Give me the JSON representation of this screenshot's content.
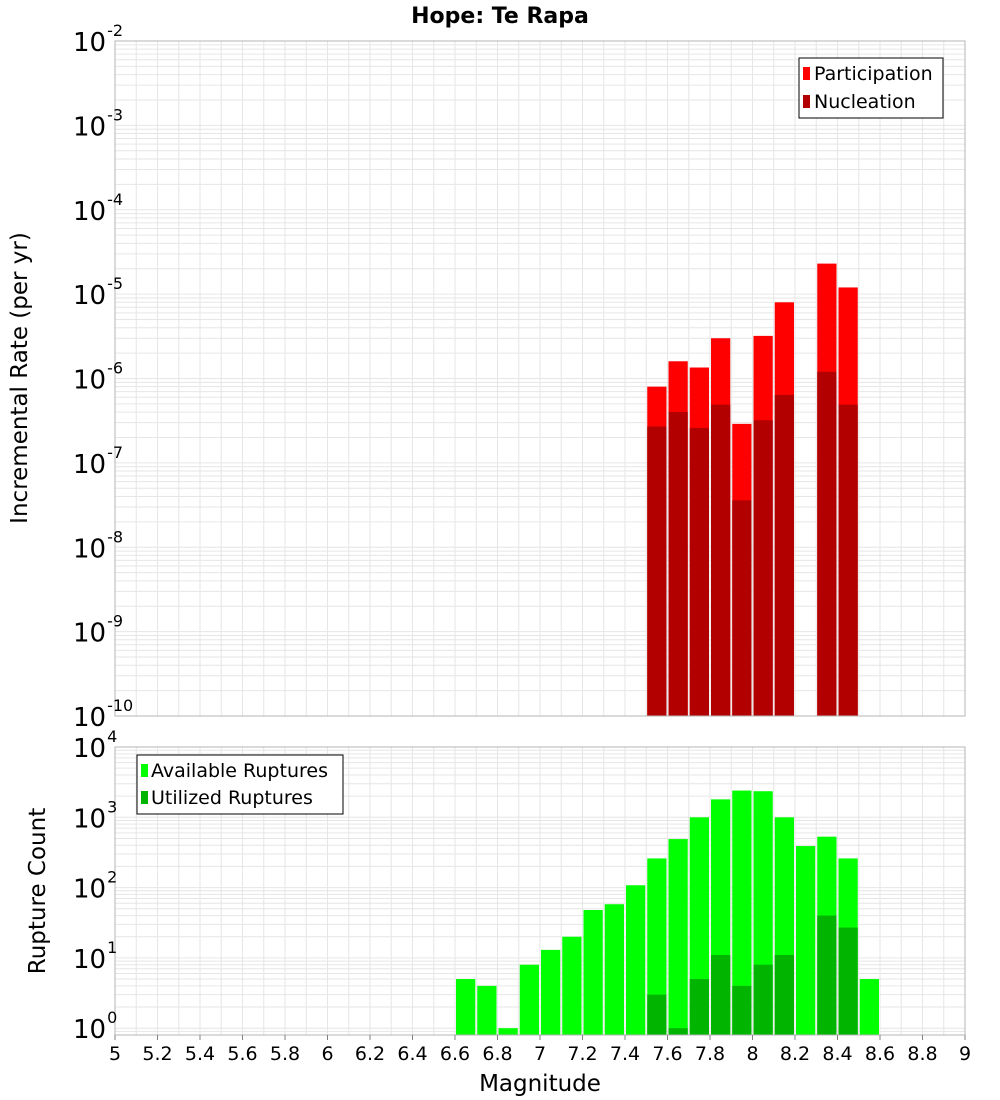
{
  "chart_data": [
    {
      "type": "bar",
      "title": "Hope: Te Rapa",
      "ylabel": "Incremental Rate (per yr)",
      "xlabel": "",
      "x_scale": "linear",
      "y_scale": "log",
      "xlim": [
        5,
        9
      ],
      "ylim": [
        1e-10,
        0.01
      ],
      "y_tick_exponents": [
        -2,
        -3,
        -4,
        -5,
        -6,
        -7,
        -8,
        -9,
        -10
      ],
      "bar_width": 0.1,
      "grid": true,
      "legend": "top-right",
      "series": [
        {
          "name": "Participation",
          "color": "#ff0000",
          "x": [
            7.55,
            7.65,
            7.75,
            7.85,
            7.95,
            8.05,
            8.15,
            8.35,
            8.45
          ],
          "values": [
            8e-07,
            1.6e-06,
            1.35e-06,
            3e-06,
            2.9e-07,
            3.2e-06,
            8e-06,
            2.3e-05,
            1.2e-05
          ]
        },
        {
          "name": "Nucleation",
          "color": "#b20000",
          "x": [
            7.55,
            7.65,
            7.75,
            7.85,
            7.95,
            8.05,
            8.15,
            8.35,
            8.45
          ],
          "values": [
            2.7e-07,
            4e-07,
            2.6e-07,
            4.9e-07,
            3.6e-08,
            3.2e-07,
            6.4e-07,
            1.2e-06,
            4.9e-07
          ]
        }
      ]
    },
    {
      "type": "bar",
      "title": "",
      "ylabel": "Rupture Count",
      "xlabel": "Magnitude",
      "x_scale": "linear",
      "y_scale": "log",
      "xlim": [
        5,
        9
      ],
      "ylim": [
        0.8,
        10000
      ],
      "y_tick_exponents": [
        4,
        3,
        2,
        1,
        0
      ],
      "x_ticks": [
        "5",
        "5.2",
        "5.4",
        "5.6",
        "5.8",
        "6",
        "6.2",
        "6.4",
        "6.6",
        "6.8",
        "7",
        "7.2",
        "7.4",
        "7.6",
        "7.8",
        "8",
        "8.2",
        "8.4",
        "8.6",
        "8.8",
        "9"
      ],
      "bar_width": 0.1,
      "grid": true,
      "legend": "top-left",
      "series": [
        {
          "name": "Available Ruptures",
          "color": "#00ff00",
          "x": [
            6.65,
            6.75,
            6.85,
            6.95,
            7.05,
            7.15,
            7.25,
            7.35,
            7.45,
            7.55,
            7.65,
            7.75,
            7.85,
            7.95,
            8.05,
            8.15,
            8.25,
            8.35,
            8.45,
            8.55
          ],
          "values": [
            5,
            4,
            1,
            8,
            13,
            20,
            48,
            58,
            108,
            260,
            490,
            1000,
            1800,
            2400,
            2350,
            1000,
            390,
            530,
            260,
            5
          ]
        },
        {
          "name": "Utilized Ruptures",
          "color": "#00b400",
          "x": [
            7.55,
            7.65,
            7.75,
            7.85,
            7.95,
            8.05,
            8.15,
            8.35,
            8.45
          ],
          "values": [
            3,
            1,
            5,
            11,
            4,
            8,
            11,
            40,
            27
          ]
        }
      ]
    }
  ]
}
